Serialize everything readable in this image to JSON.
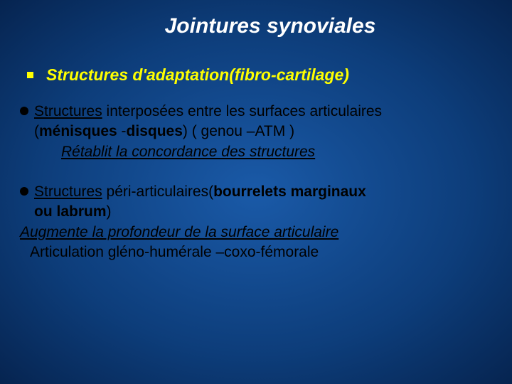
{
  "slide": {
    "title": "Jointures synoviales",
    "subhead": "Structures d'adaptation(fibro-cartilage)",
    "block1": {
      "line1_a": "Structures",
      "line1_b": " interposées entre les surfaces articulaires",
      "line2_a": "(",
      "line2_b": "ménisques",
      "line2_c": " -",
      "line2_d": "disques",
      "line2_e": ") ( genou –ATM )",
      "line3": "Rétablit la concordance des structures"
    },
    "block2": {
      "line1_a": "Structures",
      "line1_b": " péri-articulaires(",
      "line1_c": "bourrelets marginaux",
      "line2_a": "ou labrum",
      "line2_b": ")",
      "line3": "Augmente la profondeur de la surface articulaire",
      "line4": "Articulation gléno-humérale –coxo-fémorale"
    },
    "colors": {
      "background_center": "#1a5aa8",
      "background_edge": "#062450",
      "title": "#ffffff",
      "subhead": "#ffff00",
      "body": "#000000",
      "square_bullet": "#ffff00",
      "round_bullet": "#000000"
    },
    "typography": {
      "title_fontsize": 30,
      "subhead_fontsize": 23,
      "body_fontsize": 21,
      "font_family": "Verdana"
    }
  }
}
